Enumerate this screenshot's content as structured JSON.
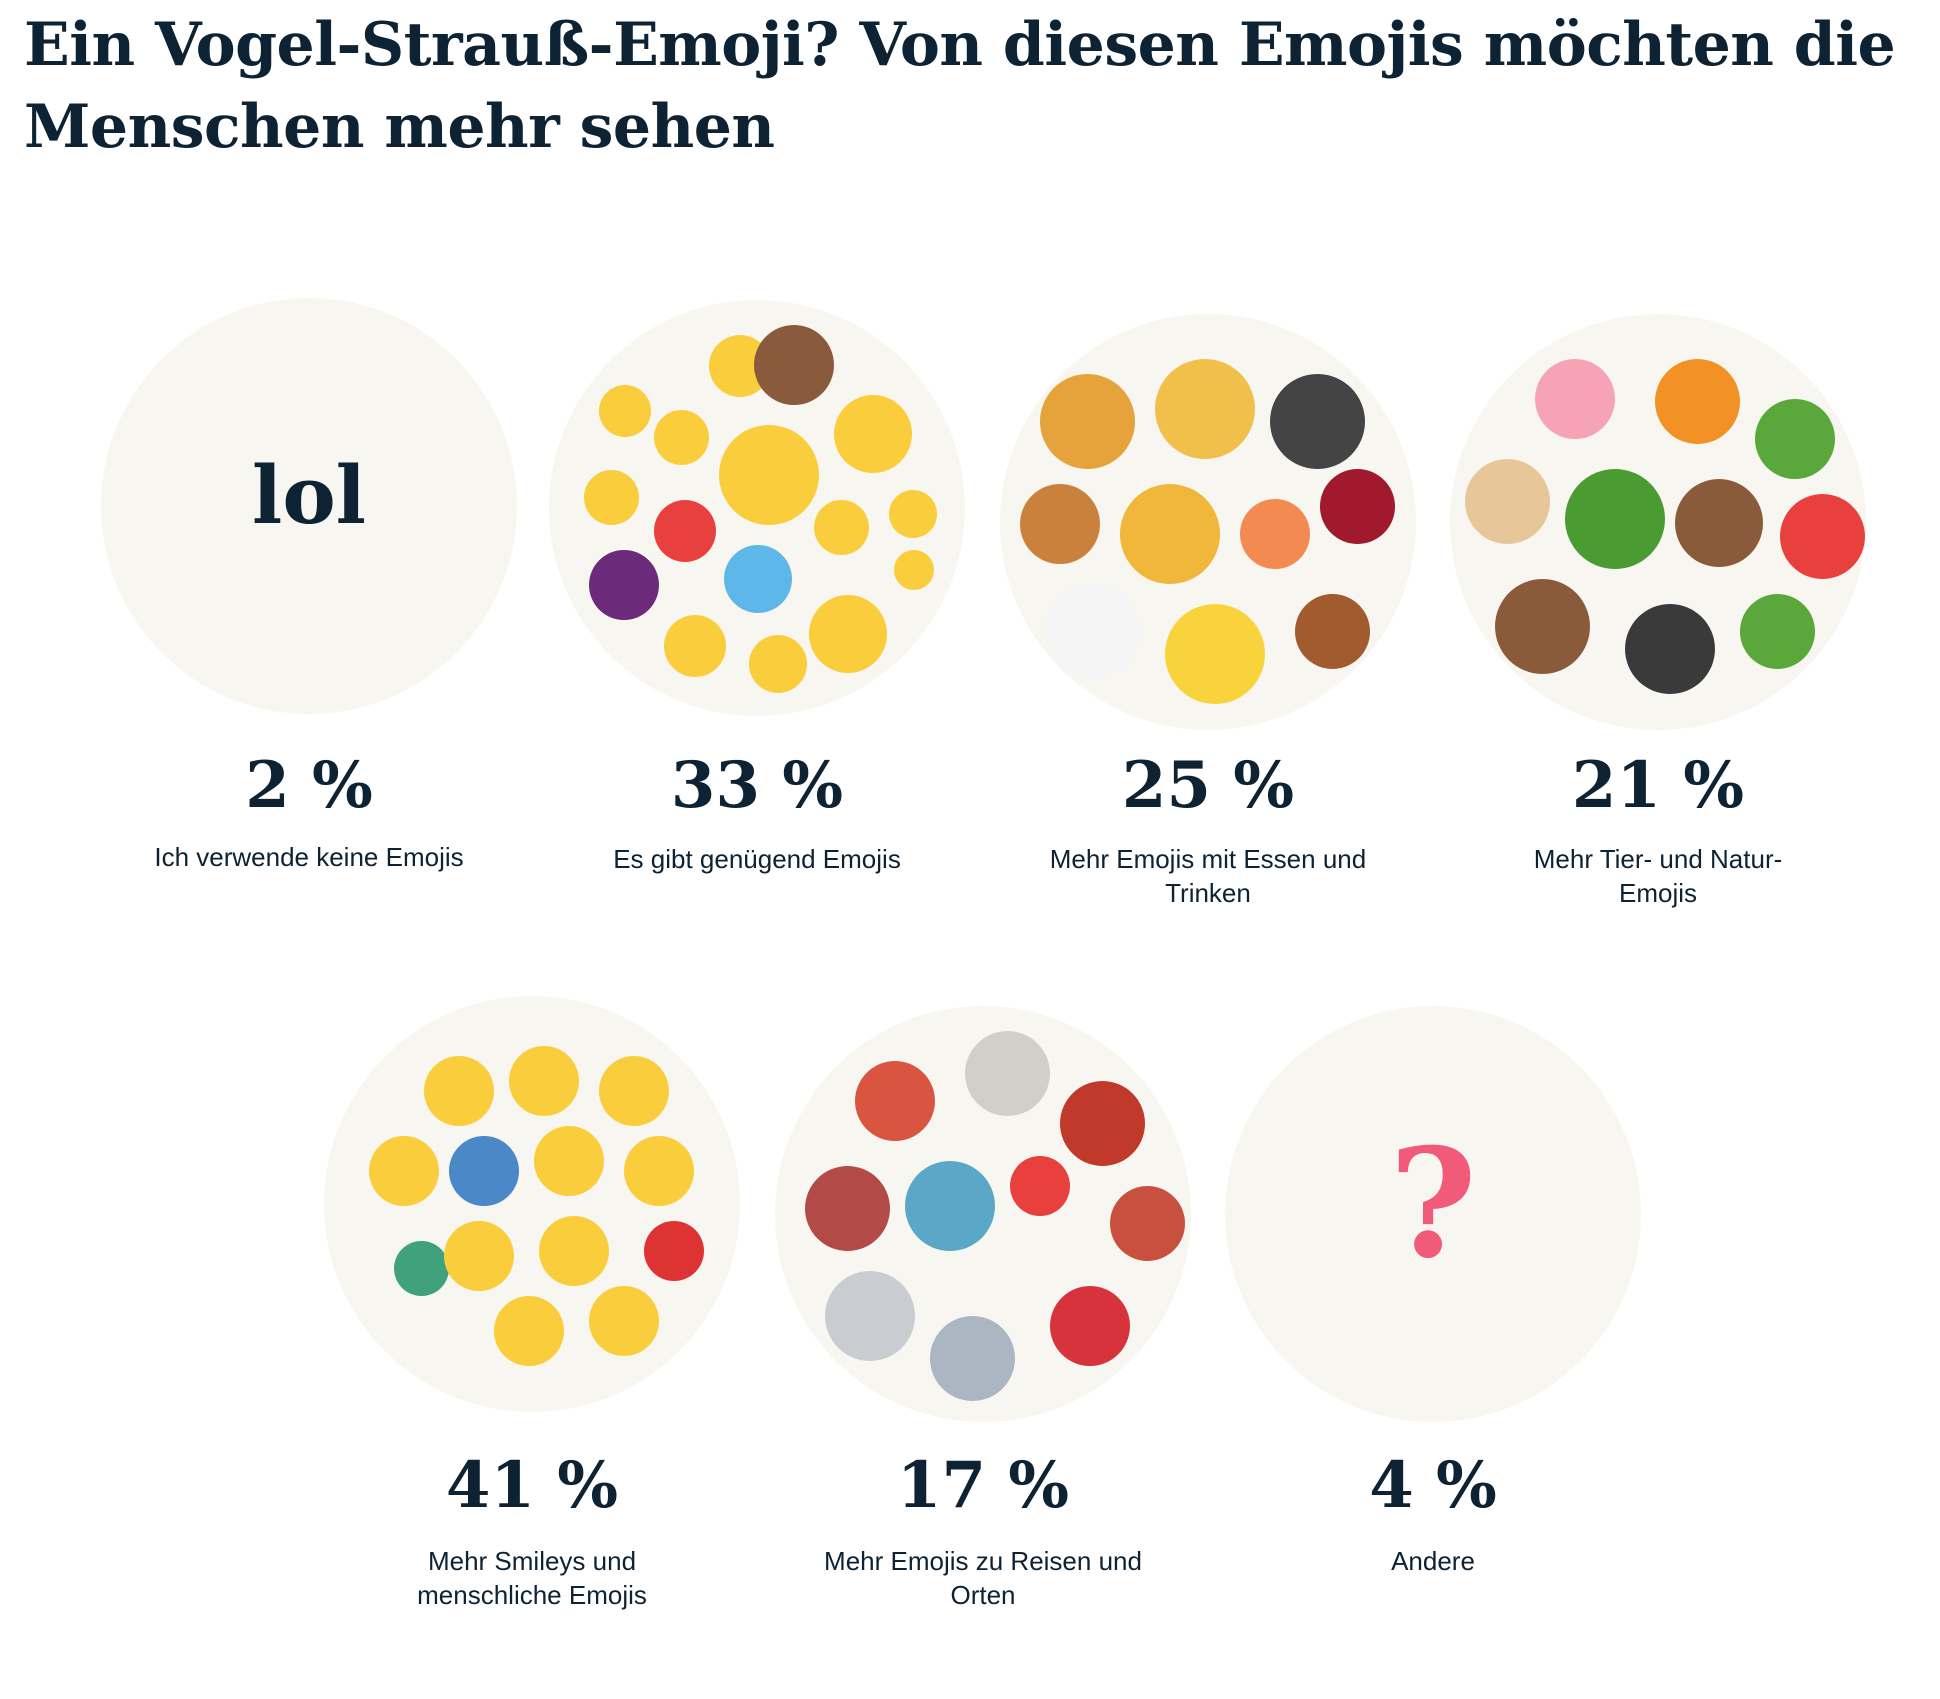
{
  "title": "Ein Vogel-Strauß-Emoji? Von diesen Emojis möchten die Menschen mehr sehen",
  "colors": {
    "text": "#0d2233",
    "circle": "#f8f6f0",
    "question_mark": "#f25a7a"
  },
  "items": [
    {
      "percent": "2 %",
      "label": "Ich verwende keine Emojis",
      "icon_text": "lol"
    },
    {
      "percent": "33 %",
      "label": "Es gibt genügend Emojis",
      "icon": "smiley-emoji-collage"
    },
    {
      "percent": "25 %",
      "label": "Mehr Emojis mit Essen und Trinken",
      "icon": "food-emoji-collage"
    },
    {
      "percent": "21 %",
      "label": "Mehr Tier- und Natur-Emojis",
      "icon": "animal-emoji-collage"
    },
    {
      "percent": "41 %",
      "label": "Mehr Smileys und menschliche Emojis",
      "icon": "people-emoji-collage"
    },
    {
      "percent": "17 %",
      "label": "Mehr Emojis zu Reisen und Orten",
      "icon": "travel-emoji-collage"
    },
    {
      "percent": "4 %",
      "label": "Andere",
      "icon_text": "?"
    }
  ]
}
